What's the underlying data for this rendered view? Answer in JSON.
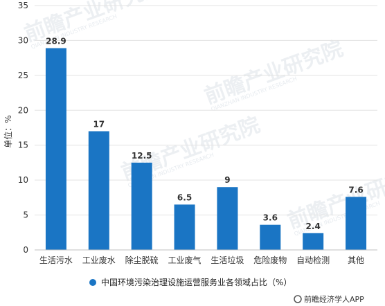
{
  "chart_data": {
    "type": "bar",
    "categories": [
      "生活污水",
      "工业废水",
      "除尘脱硫",
      "工业废气",
      "生活垃圾",
      "危险废物",
      "自动检测",
      "其他"
    ],
    "values": [
      28.9,
      17,
      12.5,
      6.5,
      9,
      3.6,
      2.4,
      7.6
    ],
    "data_labels": [
      "28.9",
      "17",
      "12.5",
      "6.5",
      "9",
      "3.6",
      "2.4",
      "7.6"
    ],
    "ylabel": "单位：%",
    "ylim": [
      0,
      35
    ],
    "yticks": [
      0,
      5,
      10,
      15,
      20,
      25,
      30,
      35
    ],
    "grid": true,
    "legend": {
      "position": "bottom",
      "entries": [
        {
          "name": "中国环境污染治理设施运营服务业各领域占比（%）",
          "color": "#1a75c4"
        }
      ]
    },
    "bar_color": "#1a75c4"
  },
  "source": "前瞻经济学人APP",
  "watermark": "前瞻产业研究院",
  "watermark_sub": "QIANZHAN INDUSTRY RESEARCH"
}
